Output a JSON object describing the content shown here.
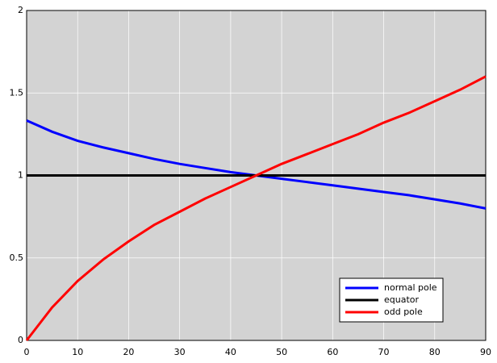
{
  "chart_data": {
    "type": "line",
    "x": [
      0,
      5,
      10,
      15,
      20,
      25,
      30,
      35,
      40,
      45,
      50,
      55,
      60,
      65,
      70,
      75,
      80,
      85,
      90
    ],
    "series": [
      {
        "name": "normal pole",
        "color": "#0000ff",
        "values": [
          1.333,
          1.265,
          1.21,
          1.17,
          1.135,
          1.1,
          1.07,
          1.045,
          1.02,
          1.0,
          0.98,
          0.96,
          0.94,
          0.92,
          0.9,
          0.88,
          0.855,
          0.83,
          0.8
        ]
      },
      {
        "name": "equator",
        "color": "#000000",
        "values": [
          1,
          1,
          1,
          1,
          1,
          1,
          1,
          1,
          1,
          1,
          1,
          1,
          1,
          1,
          1,
          1,
          1,
          1,
          1
        ]
      },
      {
        "name": "odd pole",
        "color": "#ff0000",
        "values": [
          0,
          0.2,
          0.36,
          0.49,
          0.6,
          0.7,
          0.78,
          0.86,
          0.93,
          1.0,
          1.07,
          1.13,
          1.19,
          1.25,
          1.32,
          1.38,
          1.45,
          1.52,
          1.6
        ]
      }
    ],
    "xlim": [
      0,
      90
    ],
    "xticks": [
      0,
      10,
      20,
      30,
      40,
      50,
      60,
      70,
      80,
      90
    ],
    "ylim": [
      0,
      2
    ],
    "yticks": [
      0,
      0.5,
      1,
      1.5,
      2
    ],
    "grid": true,
    "legend": "lower right"
  }
}
